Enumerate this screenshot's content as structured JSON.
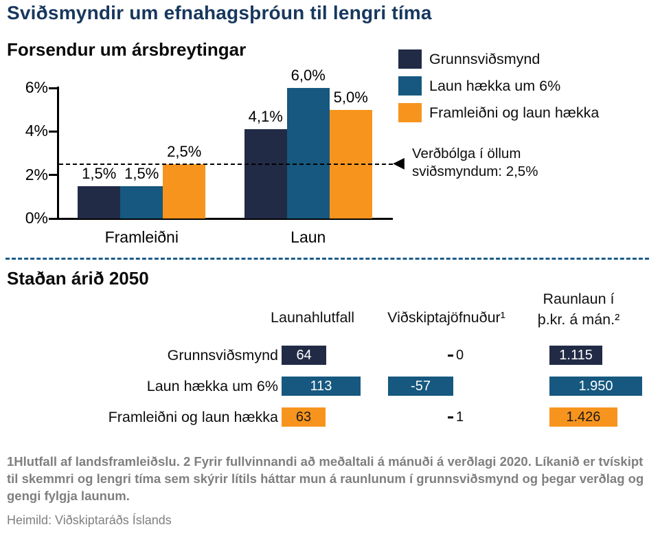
{
  "page": {
    "title": "Sviðsmyndir um efnahagsþróun til lengri tíma",
    "footnote": "1Hlutfall af landsframleiðslu. 2 Fyrir fullvinnandi að meðaltali á mánuði á verðlagi 2020. Líkanið er tvískipt til skemmri og lengri tíma sem skýrir lítils háttar mun á raunlunum í grunnsviðsmynd og þegar verðlag og gengi fylgja launum.",
    "source": "Heimild: Viðskiptaráðs Íslands"
  },
  "icons": {
    "arrow_left": "◀"
  },
  "colors": {
    "title_blue": "#17375e",
    "navy": "#212b46",
    "blue": "#16587f",
    "orange": "#f7941d",
    "divider_blue": "#1c5c8a",
    "footnote_gray": "#7f7f7f"
  },
  "chart_data": [
    {
      "type": "bar",
      "title": "Forsendur um ársbreytingar",
      "categories": [
        "Framleiðni",
        "Laun"
      ],
      "series": [
        {
          "name": "Grunnsviðsmynd",
          "color": "#212b46",
          "values": [
            1.5,
            4.1
          ],
          "value_labels": [
            "1,5%",
            "4,1%"
          ]
        },
        {
          "name": "Laun hækka um 6%",
          "color": "#16587f",
          "values": [
            1.5,
            6.0
          ],
          "value_labels": [
            "1,5%",
            "6,0%"
          ]
        },
        {
          "name": "Framleiðni og laun hækka",
          "color": "#f7941d",
          "values": [
            2.5,
            5.0
          ],
          "value_labels": [
            "2,5%",
            "5,0%"
          ]
        }
      ],
      "ylim": [
        0,
        6
      ],
      "yticks": [
        {
          "value": 0,
          "label": "0%"
        },
        {
          "value": 2,
          "label": "2%"
        },
        {
          "value": 4,
          "label": "4%"
        },
        {
          "value": 6,
          "label": "6%"
        }
      ],
      "legend_position": "right",
      "grid": false,
      "reference_line": {
        "value": 2.5,
        "label": "Verðbólga í öllum sviðsmyndum: 2,5%"
      }
    },
    {
      "type": "bar",
      "title": "Staðan árið 2050",
      "columns": [
        {
          "label": "Launahlutfall"
        },
        {
          "label": "Viðskiptajöfnuður¹"
        },
        {
          "label_line1": "Raunlaun í",
          "label_line2": "þ.kr. á mán.²"
        }
      ],
      "rows": [
        {
          "label": "Grunnsviðsmynd",
          "color": "#212b46",
          "text_color": "#ffffff",
          "launahlutfall": {
            "value": 64,
            "label": "64"
          },
          "vidskiptajofnudur": {
            "value": 0,
            "label": "0"
          },
          "raunlaun": {
            "value": 1115,
            "label": "1.115"
          }
        },
        {
          "label": "Laun hækka um 6%",
          "color": "#16587f",
          "text_color": "#ffffff",
          "launahlutfall": {
            "value": 113,
            "label": "113"
          },
          "vidskiptajofnudur": {
            "value": -57,
            "label": "-57"
          },
          "raunlaun": {
            "value": 1950,
            "label": "1.950"
          }
        },
        {
          "label": "Framleiðni og laun hækka",
          "color": "#f7941d",
          "text_color": "#1b1b1b",
          "launahlutfall": {
            "value": 63,
            "label": "63"
          },
          "vidskiptajofnudur": {
            "value": 1,
            "label": "1"
          },
          "raunlaun": {
            "value": 1426,
            "label": "1.426"
          }
        }
      ]
    }
  ]
}
